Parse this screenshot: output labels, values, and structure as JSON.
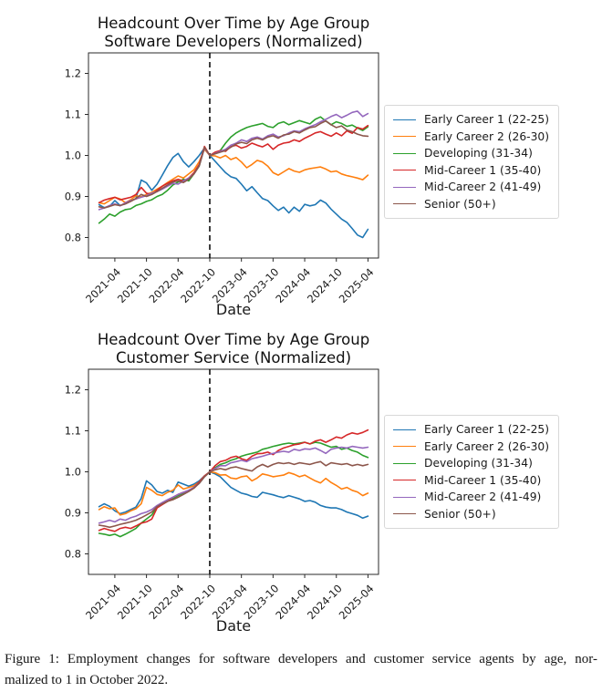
{
  "figure": {
    "caption_line1": "Figure 1: Employment changes for software developers and customer service agents by age, nor-",
    "caption_line2": "malized to 1 in October 2022."
  },
  "chart_data": [
    {
      "type": "line",
      "title_line1": "Headcount Over Time by Age Group",
      "title_line2": "Software Developers (Normalized)",
      "xlabel": "Date",
      "ylabel": "",
      "x_range": [
        "2021-01",
        "2025-04"
      ],
      "x_interval": "month",
      "x_tick_labels": [
        "2021-04",
        "2021-10",
        "2022-04",
        "2022-10",
        "2023-04",
        "2023-10",
        "2024-04",
        "2024-10",
        "2025-04"
      ],
      "y_ticks": [
        0.8,
        0.9,
        1.0,
        1.1,
        1.2
      ],
      "ylim": [
        0.75,
        1.25
      ],
      "grid": false,
      "legend_position": "right-outside",
      "vline_month": "2022-10",
      "vline_style": "black-dashed",
      "normalization_note": "all series equal 1.0 at 2022-10",
      "series": [
        {
          "name": "Early Career 1 (22-25)",
          "color": "#1f77b4",
          "values": [
            0.88,
            0.873,
            0.876,
            0.89,
            0.878,
            0.882,
            0.889,
            0.895,
            0.94,
            0.933,
            0.915,
            0.93,
            0.952,
            0.975,
            0.995,
            1.005,
            0.985,
            0.972,
            0.985,
            1.0,
            1.018,
            1.0,
            0.986,
            0.972,
            0.958,
            0.948,
            0.944,
            0.93,
            0.914,
            0.924,
            0.909,
            0.895,
            0.89,
            0.877,
            0.866,
            0.874,
            0.86,
            0.874,
            0.864,
            0.881,
            0.877,
            0.88,
            0.891,
            0.884,
            0.869,
            0.857,
            0.845,
            0.837,
            0.822,
            0.806,
            0.8,
            0.82
          ]
        },
        {
          "name": "Early Career 2 (26-30)",
          "color": "#ff7f0e",
          "values": [
            0.885,
            0.882,
            0.89,
            0.898,
            0.894,
            0.885,
            0.892,
            0.902,
            0.899,
            0.905,
            0.91,
            0.918,
            0.925,
            0.934,
            0.942,
            0.95,
            0.945,
            0.955,
            0.965,
            0.985,
            1.015,
            1.0,
            0.999,
            0.994,
            1.0,
            0.99,
            0.995,
            0.984,
            0.97,
            0.978,
            0.988,
            0.984,
            0.974,
            0.958,
            0.952,
            0.96,
            0.968,
            0.962,
            0.959,
            0.965,
            0.968,
            0.97,
            0.972,
            0.967,
            0.96,
            0.962,
            0.955,
            0.951,
            0.948,
            0.945,
            0.941,
            0.952
          ]
        },
        {
          "name": "Developing (31-34)",
          "color": "#2ca02c",
          "values": [
            0.835,
            0.845,
            0.857,
            0.852,
            0.862,
            0.868,
            0.87,
            0.878,
            0.882,
            0.888,
            0.892,
            0.9,
            0.905,
            0.915,
            0.928,
            0.935,
            0.942,
            0.938,
            0.955,
            0.974,
            1.02,
            1.0,
            1.006,
            1.012,
            1.03,
            1.045,
            1.055,
            1.062,
            1.068,
            1.072,
            1.075,
            1.078,
            1.071,
            1.068,
            1.078,
            1.082,
            1.075,
            1.08,
            1.085,
            1.081,
            1.077,
            1.088,
            1.094,
            1.084,
            1.075,
            1.082,
            1.078,
            1.071,
            1.074,
            1.067,
            1.061,
            1.07
          ]
        },
        {
          "name": "Mid-Career 1 (35-40)",
          "color": "#d62728",
          "values": [
            0.885,
            0.891,
            0.895,
            0.898,
            0.892,
            0.895,
            0.898,
            0.905,
            0.922,
            0.908,
            0.905,
            0.915,
            0.925,
            0.932,
            0.938,
            0.942,
            0.938,
            0.945,
            0.958,
            0.978,
            1.022,
            1.0,
            1.008,
            1.012,
            1.01,
            1.022,
            1.025,
            1.018,
            1.022,
            1.03,
            1.025,
            1.021,
            1.028,
            1.015,
            1.025,
            1.03,
            1.032,
            1.038,
            1.034,
            1.042,
            1.048,
            1.055,
            1.058,
            1.052,
            1.047,
            1.055,
            1.048,
            1.06,
            1.054,
            1.068,
            1.064,
            1.073
          ]
        },
        {
          "name": "Mid-Career 2 (41-49)",
          "color": "#9467bd",
          "values": [
            0.868,
            0.872,
            0.878,
            0.882,
            0.877,
            0.885,
            0.89,
            0.894,
            0.898,
            0.902,
            0.908,
            0.912,
            0.918,
            0.925,
            0.932,
            0.93,
            0.938,
            0.945,
            0.955,
            0.975,
            1.018,
            1.0,
            1.005,
            1.01,
            1.015,
            1.025,
            1.03,
            1.038,
            1.034,
            1.042,
            1.045,
            1.04,
            1.048,
            1.052,
            1.045,
            1.048,
            1.055,
            1.06,
            1.058,
            1.065,
            1.07,
            1.075,
            1.082,
            1.088,
            1.095,
            1.1,
            1.092,
            1.098,
            1.105,
            1.108,
            1.095,
            1.102
          ]
        },
        {
          "name": "Senior (50+)",
          "color": "#8c564b",
          "values": [
            0.875,
            0.872,
            0.876,
            0.88,
            0.878,
            0.882,
            0.888,
            0.895,
            0.905,
            0.9,
            0.905,
            0.912,
            0.92,
            0.928,
            0.935,
            0.938,
            0.934,
            0.942,
            0.955,
            0.975,
            1.02,
            1.0,
            1.004,
            1.008,
            1.012,
            1.02,
            1.028,
            1.032,
            1.029,
            1.038,
            1.042,
            1.038,
            1.045,
            1.048,
            1.042,
            1.05,
            1.052,
            1.058,
            1.055,
            1.062,
            1.068,
            1.07,
            1.078,
            1.084,
            1.075,
            1.068,
            1.072,
            1.062,
            1.058,
            1.052,
            1.048,
            1.047
          ]
        }
      ]
    },
    {
      "type": "line",
      "title_line1": "Headcount Over Time by Age Group",
      "title_line2": "Customer Service (Normalized)",
      "xlabel": "Date",
      "ylabel": "",
      "x_range": [
        "2021-01",
        "2025-04"
      ],
      "x_interval": "month",
      "x_tick_labels": [
        "2021-04",
        "2021-10",
        "2022-04",
        "2022-10",
        "2023-04",
        "2023-10",
        "2024-04",
        "2024-10",
        "2025-04"
      ],
      "y_ticks": [
        0.8,
        0.9,
        1.0,
        1.1,
        1.2
      ],
      "ylim": [
        0.75,
        1.25
      ],
      "grid": false,
      "legend_position": "right-outside",
      "vline_month": "2022-10",
      "vline_style": "black-dashed",
      "normalization_note": "all series equal 1.0 at 2022-10",
      "series": [
        {
          "name": "Early Career 1 (22-25)",
          "color": "#1f77b4",
          "values": [
            0.915,
            0.922,
            0.916,
            0.905,
            0.898,
            0.902,
            0.908,
            0.914,
            0.935,
            0.978,
            0.968,
            0.952,
            0.948,
            0.955,
            0.95,
            0.975,
            0.97,
            0.965,
            0.97,
            0.978,
            0.99,
            1.0,
            0.995,
            0.988,
            0.975,
            0.962,
            0.955,
            0.948,
            0.945,
            0.94,
            0.938,
            0.95,
            0.947,
            0.944,
            0.94,
            0.937,
            0.942,
            0.938,
            0.934,
            0.928,
            0.93,
            0.926,
            0.918,
            0.914,
            0.912,
            0.912,
            0.908,
            0.902,
            0.898,
            0.894,
            0.887,
            0.892
          ]
        },
        {
          "name": "Early Career 2 (26-30)",
          "color": "#ff7f0e",
          "values": [
            0.908,
            0.915,
            0.91,
            0.912,
            0.895,
            0.898,
            0.905,
            0.91,
            0.922,
            0.962,
            0.955,
            0.945,
            0.942,
            0.95,
            0.955,
            0.968,
            0.958,
            0.962,
            0.966,
            0.975,
            0.99,
            1.0,
            0.998,
            0.992,
            0.993,
            0.985,
            0.983,
            0.988,
            0.99,
            0.978,
            0.985,
            0.995,
            0.992,
            0.988,
            0.99,
            0.992,
            0.998,
            0.994,
            0.988,
            0.992,
            0.985,
            0.978,
            0.973,
            0.984,
            0.974,
            0.967,
            0.958,
            0.962,
            0.955,
            0.951,
            0.942,
            0.948
          ]
        },
        {
          "name": "Developing (31-34)",
          "color": "#2ca02c",
          "values": [
            0.85,
            0.848,
            0.845,
            0.848,
            0.842,
            0.848,
            0.855,
            0.862,
            0.875,
            0.885,
            0.895,
            0.915,
            0.922,
            0.928,
            0.935,
            0.942,
            0.948,
            0.955,
            0.962,
            0.972,
            0.988,
            1.0,
            1.01,
            1.018,
            1.022,
            1.028,
            1.032,
            1.038,
            1.042,
            1.045,
            1.048,
            1.055,
            1.058,
            1.062,
            1.065,
            1.068,
            1.07,
            1.068,
            1.07,
            1.072,
            1.068,
            1.072,
            1.07,
            1.065,
            1.06,
            1.062,
            1.055,
            1.058,
            1.052,
            1.048,
            1.04,
            1.035
          ]
        },
        {
          "name": "Mid-Career 1 (35-40)",
          "color": "#d62728",
          "values": [
            0.857,
            0.862,
            0.858,
            0.855,
            0.862,
            0.865,
            0.862,
            0.868,
            0.875,
            0.878,
            0.885,
            0.912,
            0.92,
            0.928,
            0.938,
            0.945,
            0.95,
            0.955,
            0.962,
            0.975,
            0.99,
            1.0,
            1.015,
            1.025,
            1.028,
            1.035,
            1.038,
            1.032,
            1.028,
            1.038,
            1.044,
            1.045,
            1.048,
            1.042,
            1.052,
            1.058,
            1.062,
            1.066,
            1.068,
            1.072,
            1.068,
            1.075,
            1.078,
            1.072,
            1.078,
            1.085,
            1.082,
            1.09,
            1.095,
            1.092,
            1.096,
            1.102
          ]
        },
        {
          "name": "Mid-Career 2 (41-49)",
          "color": "#9467bd",
          "values": [
            0.875,
            0.878,
            0.882,
            0.878,
            0.885,
            0.882,
            0.888,
            0.892,
            0.898,
            0.902,
            0.908,
            0.918,
            0.925,
            0.932,
            0.938,
            0.945,
            0.95,
            0.955,
            0.962,
            0.972,
            0.988,
            1.0,
            1.008,
            1.015,
            1.015,
            1.022,
            1.025,
            1.028,
            1.025,
            1.032,
            1.035,
            1.038,
            1.042,
            1.045,
            1.048,
            1.05,
            1.048,
            1.055,
            1.052,
            1.056,
            1.055,
            1.058,
            1.052,
            1.045,
            1.055,
            1.058,
            1.06,
            1.058,
            1.062,
            1.06,
            1.058,
            1.06
          ]
        },
        {
          "name": "Senior (50+)",
          "color": "#8c564b",
          "values": [
            0.87,
            0.868,
            0.865,
            0.868,
            0.872,
            0.875,
            0.878,
            0.882,
            0.888,
            0.895,
            0.902,
            0.915,
            0.922,
            0.928,
            0.932,
            0.938,
            0.945,
            0.952,
            0.96,
            0.972,
            0.988,
            1.0,
            1.005,
            1.008,
            1.005,
            1.01,
            1.012,
            1.008,
            1.005,
            1.002,
            1.012,
            1.018,
            1.012,
            1.018,
            1.022,
            1.02,
            1.022,
            1.018,
            1.022,
            1.02,
            1.018,
            1.022,
            1.025,
            1.015,
            1.022,
            1.02,
            1.018,
            1.02,
            1.015,
            1.018,
            1.015,
            1.018
          ]
        }
      ]
    }
  ]
}
